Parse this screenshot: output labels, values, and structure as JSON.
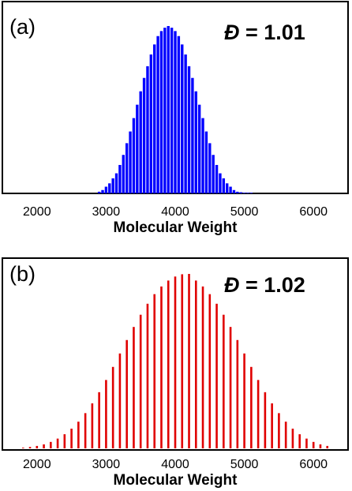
{
  "chart_data": [
    {
      "type": "bar",
      "panel_label": "(a)",
      "annotation": {
        "symbol": "Đ",
        "text": " = 1.01"
      },
      "xlabel": "Molecular Weight",
      "ylabel": "",
      "xlim": [
        1500,
        6500
      ],
      "ylim": [
        0,
        1.0
      ],
      "xticks": [
        2000,
        3000,
        4000,
        5000,
        6000
      ],
      "color": "#0000ff",
      "x": [
        2900,
        2950,
        3000,
        3050,
        3100,
        3150,
        3200,
        3250,
        3300,
        3350,
        3400,
        3450,
        3500,
        3550,
        3600,
        3650,
        3700,
        3750,
        3800,
        3850,
        3900,
        3950,
        4000,
        4050,
        4100,
        4150,
        4200,
        4250,
        4300,
        4350,
        4400,
        4450,
        4500,
        4550,
        4600,
        4650,
        4700,
        4750,
        4800,
        4850,
        4900,
        4950,
        5000,
        5050,
        5100
      ],
      "values": [
        0.01,
        0.02,
        0.04,
        0.06,
        0.09,
        0.12,
        0.17,
        0.23,
        0.3,
        0.37,
        0.45,
        0.53,
        0.61,
        0.69,
        0.76,
        0.83,
        0.89,
        0.94,
        0.97,
        0.99,
        1.0,
        0.99,
        0.97,
        0.94,
        0.89,
        0.83,
        0.76,
        0.69,
        0.61,
        0.53,
        0.45,
        0.37,
        0.3,
        0.23,
        0.17,
        0.12,
        0.09,
        0.06,
        0.04,
        0.02,
        0.01,
        0.007,
        0.004,
        0.002,
        0.001
      ]
    },
    {
      "type": "bar",
      "panel_label": "(b)",
      "annotation": {
        "symbol": "Đ",
        "text": " = 1.02"
      },
      "xlabel": "Molecular Weight",
      "ylabel": "",
      "xlim": [
        1500,
        6500
      ],
      "ylim": [
        0,
        1.0
      ],
      "xticks": [
        2000,
        3000,
        4000,
        5000,
        6000
      ],
      "color": "#e00000",
      "x": [
        1800,
        1900,
        2000,
        2100,
        2200,
        2300,
        2400,
        2500,
        2600,
        2700,
        2800,
        2900,
        3000,
        3100,
        3200,
        3300,
        3400,
        3500,
        3600,
        3700,
        3800,
        3900,
        4000,
        4100,
        4200,
        4300,
        4400,
        4500,
        4600,
        4700,
        4800,
        4900,
        5000,
        5100,
        5200,
        5300,
        5400,
        5500,
        5600,
        5700,
        5800,
        5900,
        6000,
        6100,
        6200
      ],
      "values": [
        0.004,
        0.008,
        0.014,
        0.023,
        0.037,
        0.056,
        0.081,
        0.113,
        0.153,
        0.202,
        0.258,
        0.322,
        0.392,
        0.467,
        0.544,
        0.621,
        0.696,
        0.766,
        0.829,
        0.884,
        0.928,
        0.962,
        0.985,
        0.998,
        1.0,
        0.962,
        0.928,
        0.884,
        0.829,
        0.766,
        0.696,
        0.621,
        0.544,
        0.467,
        0.392,
        0.322,
        0.258,
        0.202,
        0.153,
        0.113,
        0.081,
        0.056,
        0.037,
        0.023,
        0.014
      ]
    }
  ]
}
